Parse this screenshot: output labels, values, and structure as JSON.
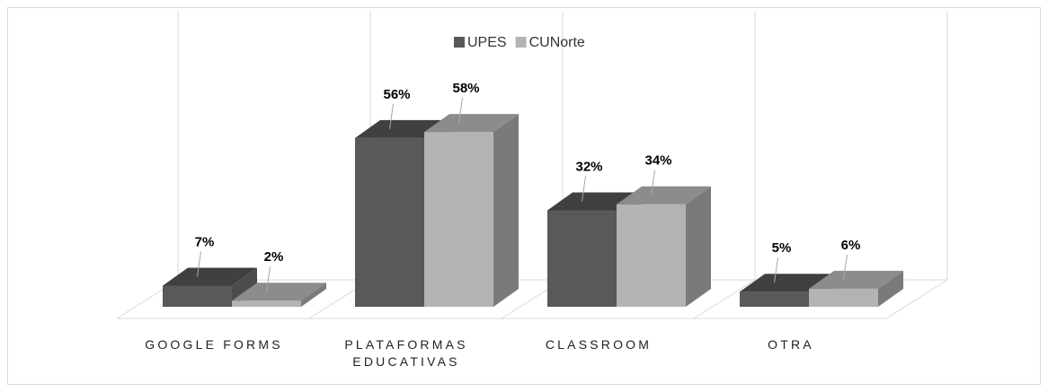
{
  "chart_data": {
    "type": "bar3d",
    "categories": [
      "GOOGLE FORMS",
      "PLATAFORMAS EDUCATIVAS",
      "CLASSROOM",
      "OTRA"
    ],
    "series": [
      {
        "name": "UPES",
        "color": "#595959",
        "values": [
          7,
          56,
          32,
          5
        ],
        "value_labels": [
          "7%",
          "56%",
          "32%",
          "5%"
        ]
      },
      {
        "name": "CUNorte",
        "color": "#b3b3b3",
        "values": [
          2,
          58,
          34,
          6
        ],
        "value_labels": [
          "2%",
          "58%",
          "34%",
          "6%"
        ]
      }
    ],
    "ylim": [
      0,
      100
    ],
    "legend": "top"
  }
}
